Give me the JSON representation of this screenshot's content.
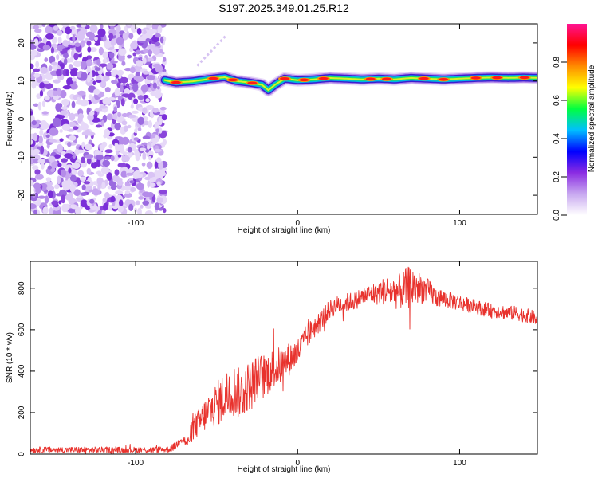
{
  "title": "S197.2025.349.01.25.R12",
  "chart_data": [
    {
      "type": "heatmap",
      "title": "S197.2025.349.01.25.R12",
      "xlabel": "Height of straight line (km)",
      "ylabel": "Frequency (Hz)",
      "xlim": [
        -165,
        148
      ],
      "ylim": [
        -25,
        25
      ],
      "xticks": [
        -100,
        0,
        100
      ],
      "yticks": [
        -20,
        -10,
        0,
        10,
        20
      ],
      "x_tick_labels": [
        "-100",
        "0",
        "100"
      ],
      "y_tick_labels": [
        "-20",
        "-10",
        "0",
        "10",
        "20"
      ],
      "noise_region_x": [
        -165,
        -82
      ],
      "ridge": {
        "x": [
          -82,
          -75,
          -65,
          -55,
          -45,
          -38,
          -30,
          -22,
          -18,
          -14,
          -8,
          0,
          10,
          20,
          30,
          40,
          50,
          60,
          70,
          80,
          90,
          100,
          110,
          120,
          130,
          140,
          148
        ],
        "y": [
          10.2,
          9.6,
          9.9,
          10.5,
          11.0,
          10.0,
          9.6,
          9.0,
          7.6,
          9.0,
          10.6,
          10.2,
          10.4,
          10.8,
          10.6,
          10.4,
          10.6,
          10.4,
          10.8,
          10.6,
          10.4,
          10.6,
          10.8,
          10.9,
          10.8,
          10.9,
          10.8
        ],
        "peak_centers_x": [
          -75,
          -52,
          -40,
          -28,
          -8,
          4,
          16,
          45,
          55,
          78,
          90,
          110,
          123,
          140
        ]
      },
      "colorbar": {
        "label": "Normalized spectral amplitude",
        "range": [
          0.0,
          1.0
        ],
        "ticks": [
          0.0,
          0.2,
          0.4,
          0.6,
          0.8
        ],
        "tick_labels": [
          "0.0",
          "0.2",
          "0.4",
          "0.6",
          "0.8"
        ],
        "colors": [
          "#ffffff",
          "#c8a8f0",
          "#8a2be2",
          "#0000ff",
          "#00bfff",
          "#00ff40",
          "#ffff00",
          "#ff8c00",
          "#ff0000",
          "#ff1493"
        ]
      }
    },
    {
      "type": "line",
      "title": "",
      "xlabel": "Height of straight line (km)",
      "ylabel": "SNR (10 * v/v)",
      "xlim": [
        -165,
        148
      ],
      "ylim": [
        0,
        930
      ],
      "xticks": [
        -100,
        0,
        100
      ],
      "yticks": [
        0,
        200,
        400,
        600,
        800
      ],
      "x_tick_labels": [
        "-100",
        "0",
        "100"
      ],
      "y_tick_labels": [
        "0",
        "200",
        "400",
        "600",
        "800"
      ],
      "color": "#e8322d",
      "series": [
        {
          "name": "SNR",
          "x": [
            -165,
            -150,
            -130,
            -110,
            -90,
            -80,
            -75,
            -72,
            -68,
            -65,
            -60,
            -55,
            -50,
            -45,
            -40,
            -35,
            -30,
            -25,
            -20,
            -15,
            -10,
            -5,
            0,
            5,
            10,
            15,
            20,
            25,
            30,
            35,
            40,
            45,
            50,
            55,
            60,
            65,
            70,
            75,
            80,
            85,
            90,
            95,
            100,
            105,
            110,
            115,
            120,
            125,
            130,
            135,
            140,
            145,
            148
          ],
          "values": [
            20,
            20,
            20,
            20,
            20,
            22,
            40,
            80,
            50,
            120,
            160,
            210,
            240,
            280,
            310,
            290,
            330,
            370,
            380,
            410,
            430,
            460,
            490,
            560,
            610,
            650,
            700,
            720,
            730,
            740,
            760,
            770,
            780,
            790,
            780,
            790,
            810,
            800,
            790,
            760,
            750,
            740,
            730,
            720,
            710,
            700,
            690,
            690,
            680,
            680,
            670,
            660,
            640
          ],
          "noise_amplitude": [
            15,
            15,
            15,
            15,
            15,
            15,
            20,
            25,
            25,
            60,
            70,
            90,
            110,
            120,
            130,
            120,
            120,
            110,
            110,
            100,
            90,
            80,
            70,
            60,
            55,
            50,
            45,
            45,
            45,
            45,
            45,
            50,
            60,
            70,
            80,
            90,
            110,
            80,
            60,
            50,
            45,
            40,
            40,
            35,
            35,
            35,
            35,
            35,
            35,
            35,
            35,
            35,
            35
          ]
        }
      ]
    }
  ]
}
